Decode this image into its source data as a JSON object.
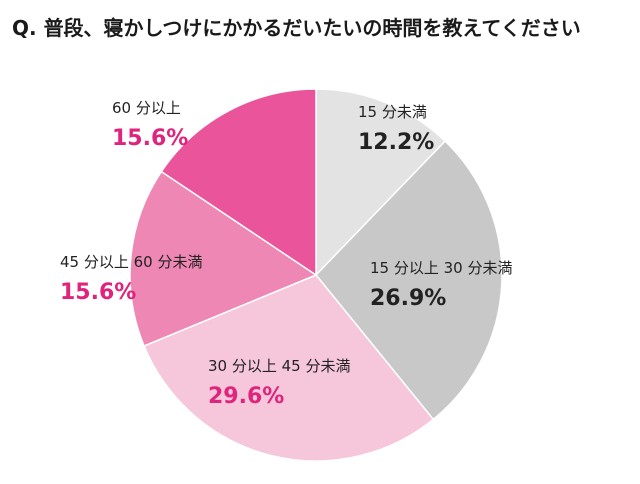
{
  "chart_data": {
    "type": "pie",
    "title": "Q. 普段、寝かしつけにかかるだいたいの時間を教えてください",
    "slices": [
      {
        "label": "15 分未満",
        "value": 12.2,
        "value_label": "12.2%",
        "color": "#e3e3e3",
        "text_color": "#222222"
      },
      {
        "label": "15 分以上 30 分未満",
        "value": 26.9,
        "value_label": "26.9%",
        "color": "#c8c8c8",
        "text_color": "#222222"
      },
      {
        "label": "30 分以上 45 分未満",
        "value": 29.6,
        "value_label": "29.6%",
        "color": "#f6c7db",
        "text_color": "#e0237c"
      },
      {
        "label": "45 分以上 60 分未満",
        "value": 15.6,
        "value_label": "15.6%",
        "color": "#ee87b4",
        "text_color": "#e0237c"
      },
      {
        "label": "60 分以上",
        "value": 15.6,
        "value_label": "15.6%",
        "color": "#e9549a",
        "text_color": "#e0237c"
      }
    ],
    "start": "top",
    "direction": "clockwise",
    "legend": "none"
  }
}
